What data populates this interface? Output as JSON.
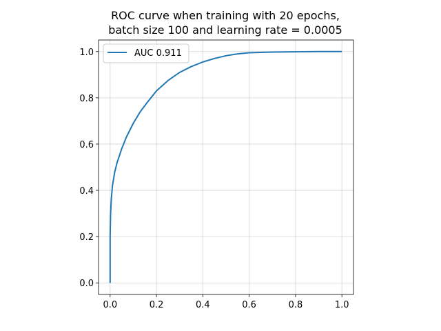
{
  "chart_data": {
    "type": "line",
    "title_lines": [
      "ROC curve when training with 20 epochs,",
      "batch size 100 and learning rate = 0.0005"
    ],
    "xlabel": "",
    "ylabel": "",
    "xlim": [
      -0.05,
      1.05
    ],
    "ylim": [
      -0.05,
      1.05
    ],
    "xticks": [
      0.0,
      0.2,
      0.4,
      0.6,
      0.8,
      1.0
    ],
    "yticks": [
      0.0,
      0.2,
      0.4,
      0.6,
      0.8,
      1.0
    ],
    "xtick_labels": [
      "0.0",
      "0.2",
      "0.4",
      "0.6",
      "0.8",
      "1.0"
    ],
    "ytick_labels": [
      "0.0",
      "0.2",
      "0.4",
      "0.6",
      "0.8",
      "1.0"
    ],
    "grid": true,
    "legend_position": "upper-left",
    "series": [
      {
        "name": "AUC 0.911",
        "color": "#1f77b4",
        "x": [
          0.0,
          0.0,
          0.002,
          0.005,
          0.01,
          0.02,
          0.03,
          0.05,
          0.07,
          0.1,
          0.13,
          0.16,
          0.2,
          0.25,
          0.3,
          0.35,
          0.4,
          0.45,
          0.5,
          0.55,
          0.6,
          0.7,
          0.8,
          0.9,
          1.0
        ],
        "y": [
          0.0,
          0.2,
          0.3,
          0.36,
          0.42,
          0.48,
          0.52,
          0.58,
          0.63,
          0.69,
          0.74,
          0.78,
          0.83,
          0.875,
          0.91,
          0.935,
          0.955,
          0.97,
          0.982,
          0.99,
          0.995,
          0.998,
          0.999,
          1.0,
          1.0
        ]
      }
    ]
  }
}
